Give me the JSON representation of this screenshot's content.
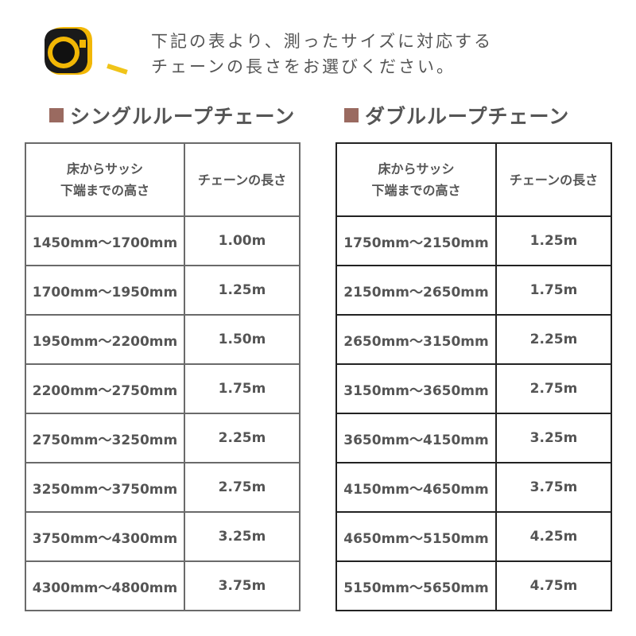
{
  "intro": {
    "line1": "下記の表より、測ったサイズに対応する",
    "line2": "チェーンの長さをお選びください。"
  },
  "accent_color": "#9a6a60",
  "single": {
    "title": "シングルループチェーン",
    "headers": {
      "height_line1": "床からサッシ",
      "height_line2": "下端までの高さ",
      "length": "チェーンの長さ"
    },
    "rows": [
      {
        "range": "1450mm～1700mm",
        "length": "1.00m"
      },
      {
        "range": "1700mm～1950mm",
        "length": "1.25m"
      },
      {
        "range": "1950mm～2200mm",
        "length": "1.50m"
      },
      {
        "range": "2200mm～2750mm",
        "length": "1.75m"
      },
      {
        "range": "2750mm～3250mm",
        "length": "2.25m"
      },
      {
        "range": "3250mm～3750mm",
        "length": "2.75m"
      },
      {
        "range": "3750mm～4300mm",
        "length": "3.25m"
      },
      {
        "range": "4300mm～4800mm",
        "length": "3.75m"
      }
    ]
  },
  "double": {
    "title": "ダブルループチェーン",
    "headers": {
      "height_line1": "床からサッシ",
      "height_line2": "下端までの高さ",
      "length": "チェーンの長さ"
    },
    "rows": [
      {
        "range": "1750mm～2150mm",
        "length": "1.25m"
      },
      {
        "range": "2150mm～2650mm",
        "length": "1.75m"
      },
      {
        "range": "2650mm～3150mm",
        "length": "2.25m"
      },
      {
        "range": "3150mm～3650mm",
        "length": "2.75m"
      },
      {
        "range": "3650mm～4150mm",
        "length": "3.25m"
      },
      {
        "range": "4150mm～4650mm",
        "length": "3.75m"
      },
      {
        "range": "4650mm～5150mm",
        "length": "4.25m"
      },
      {
        "range": "5150mm～5650mm",
        "length": "4.75m"
      }
    ]
  }
}
